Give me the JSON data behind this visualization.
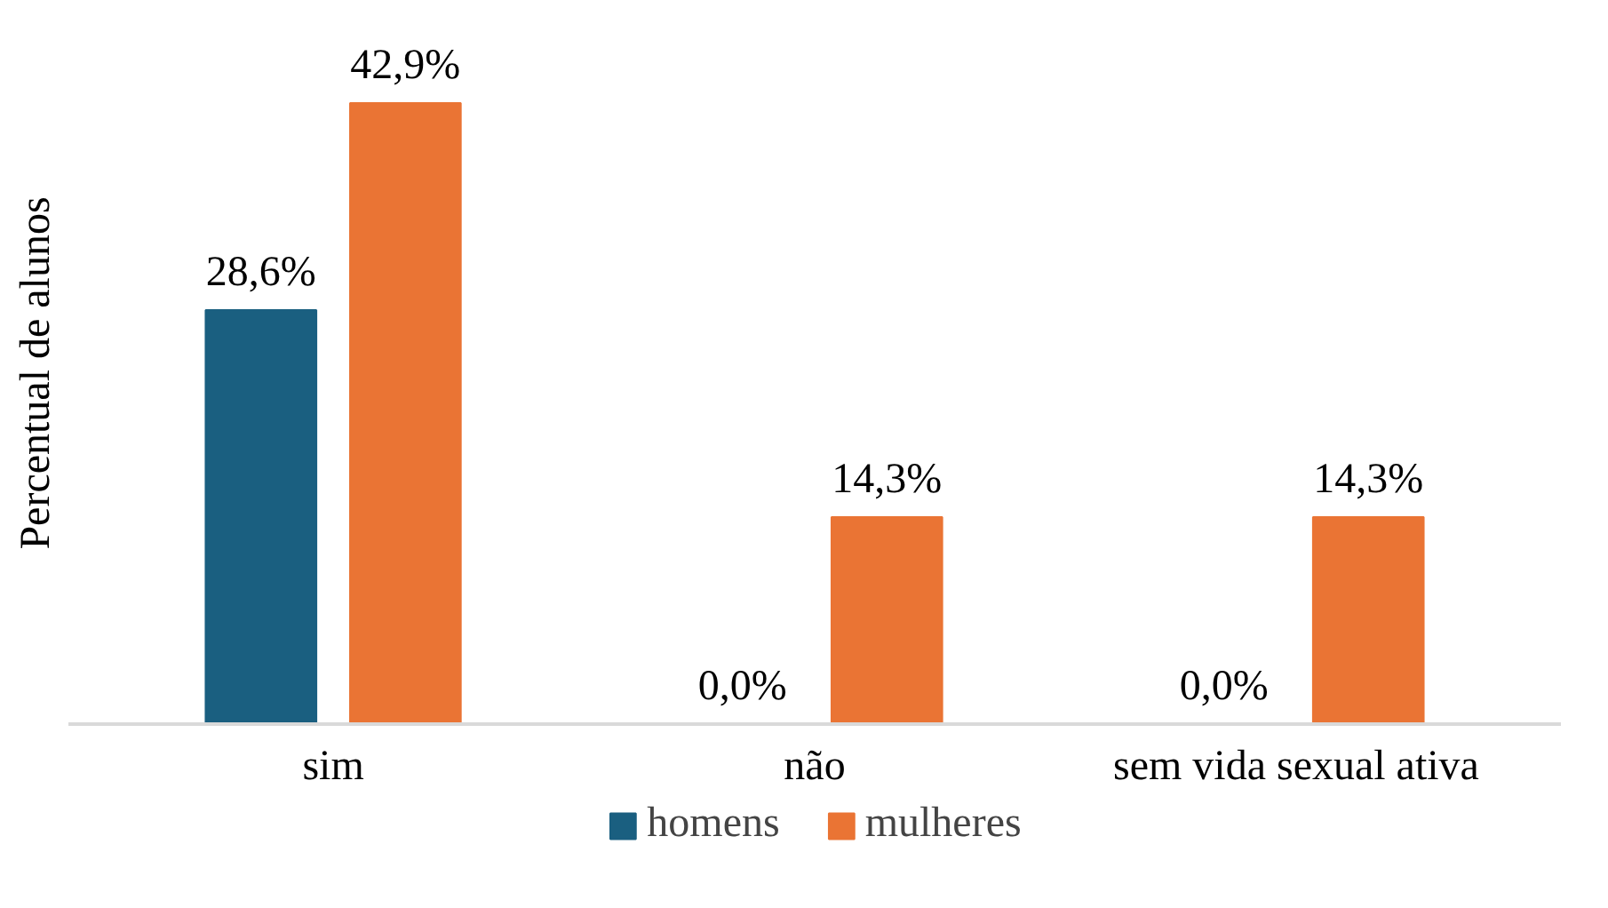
{
  "chart_data": {
    "type": "bar",
    "ylabel": "Percentual de alunos",
    "categories": [
      "sim",
      "não",
      "sem vida sexual ativa"
    ],
    "series": [
      {
        "name": "homens",
        "color": "#1a5f80",
        "values": [
          28.6,
          0.0,
          0.0
        ],
        "value_labels": [
          "28,6%",
          "0,0%",
          "0,0%"
        ]
      },
      {
        "name": "mulheres",
        "color": "#ea7434",
        "values": [
          42.9,
          14.3,
          14.3
        ],
        "value_labels": [
          "42,9%",
          "14,3%",
          "14,3%"
        ]
      }
    ],
    "legend": "bottom"
  }
}
